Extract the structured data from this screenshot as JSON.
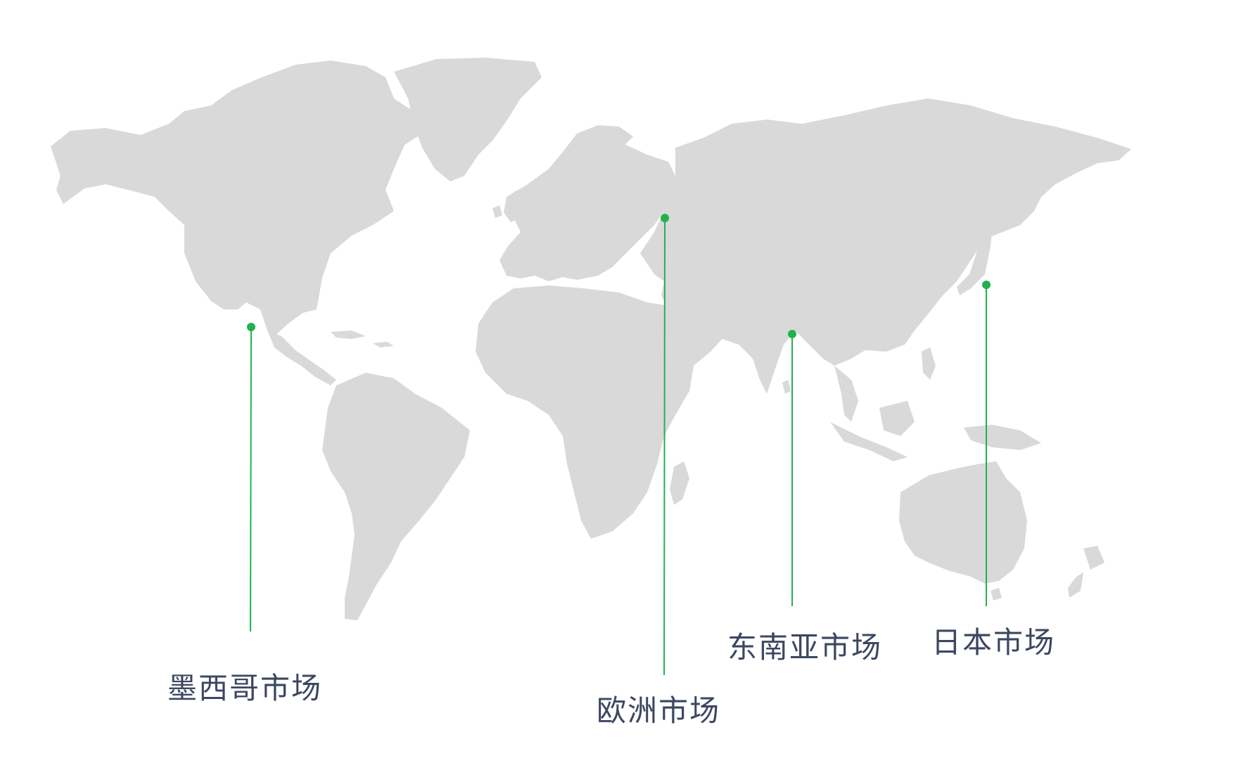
{
  "map": {
    "land_color": "#d9d9d9",
    "marker_color": "#22b14c",
    "label_color": "#3c4760",
    "markers": [
      {
        "id": "mexico",
        "label": "墨西哥市场"
      },
      {
        "id": "europe",
        "label": "欧洲市场"
      },
      {
        "id": "southeast-asia",
        "label": "东南亚市场"
      },
      {
        "id": "japan",
        "label": "日本市场"
      }
    ]
  }
}
